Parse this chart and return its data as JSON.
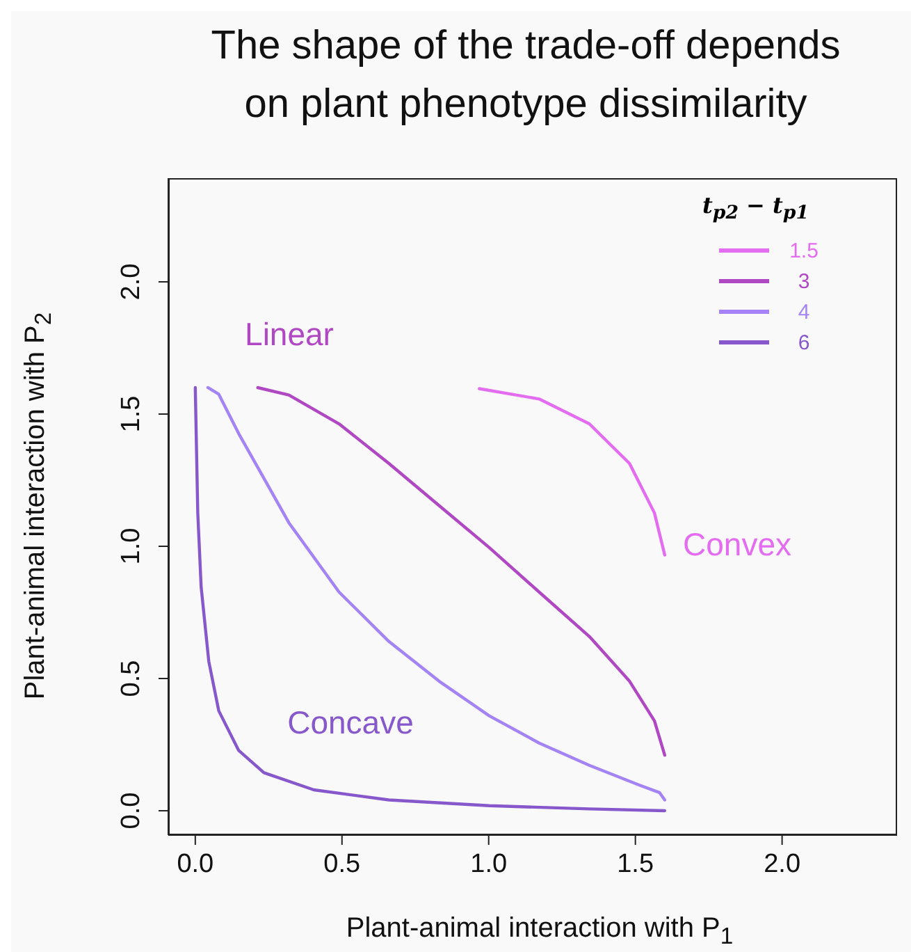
{
  "chart_data": {
    "type": "line",
    "title": "The shape of the trade-off depends\non plant phenotype dissimilarity",
    "xlabel": "Plant-animal interaction with P$_{1}$",
    "ylabel": "Plant-animal interaction with P$_{2}$",
    "legend_title": "t$_{p2}$ − t$_{p1}$",
    "legend": "top right",
    "grid": false,
    "marker": "none",
    "line_style": "solid",
    "xlim": [
      -0.092,
      2.392
    ],
    "ylim": [
      -0.092,
      2.392
    ],
    "xticks": [
      {
        "value": 0,
        "label": "0.0"
      },
      {
        "value": 0.5,
        "label": "0.5"
      },
      {
        "value": 1,
        "label": "1.0"
      },
      {
        "value": 1.5,
        "label": "1.5"
      },
      {
        "value": 2,
        "label": "2.0"
      }
    ],
    "yticks": [
      {
        "value": 0,
        "label": "0.0"
      },
      {
        "value": 0.5,
        "label": "0.5"
      },
      {
        "value": 1,
        "label": "1.0"
      },
      {
        "value": 1.5,
        "label": "1.5"
      },
      {
        "value": 2,
        "label": "2.0"
      }
    ],
    "series": [
      {
        "name": "1.5",
        "color": "#e46cf0",
        "x": [
          0.968,
          1.172,
          1.343,
          1.48,
          1.565,
          1.6
        ],
        "values": [
          1.596,
          1.557,
          1.463,
          1.313,
          1.126,
          0.967
        ]
      },
      {
        "name": "3",
        "color": "#b048c4",
        "x": [
          0.213,
          0.319,
          0.49,
          0.66,
          0.831,
          1.002,
          1.172,
          1.343,
          1.48,
          1.565,
          1.6
        ],
        "values": [
          1.6,
          1.572,
          1.463,
          1.313,
          1.154,
          0.995,
          0.827,
          0.659,
          0.49,
          0.34,
          0.21
        ]
      },
      {
        "name": "4",
        "color": "#a484f4",
        "x": [
          0.043,
          0.08,
          0.148,
          0.234,
          0.319,
          0.49,
          0.66,
          0.831,
          1.002,
          1.172,
          1.343,
          1.514,
          1.582,
          1.6
        ],
        "values": [
          1.6,
          1.575,
          1.426,
          1.257,
          1.089,
          0.827,
          0.64,
          0.49,
          0.359,
          0.256,
          0.172,
          0.097,
          0.069,
          0.041
        ]
      },
      {
        "name": "6",
        "color": "#8658cc",
        "x": [
          0,
          0.0085,
          0.02,
          0.046,
          0.08,
          0.148,
          0.234,
          0.404,
          0.66,
          1.002,
          1.343,
          1.6
        ],
        "values": [
          1.6,
          1.126,
          0.846,
          0.565,
          0.378,
          0.228,
          0.144,
          0.079,
          0.041,
          0.019,
          0.007,
          0
        ]
      }
    ],
    "annotations": [
      "Linear",
      "Convex",
      "Concave"
    ]
  }
}
